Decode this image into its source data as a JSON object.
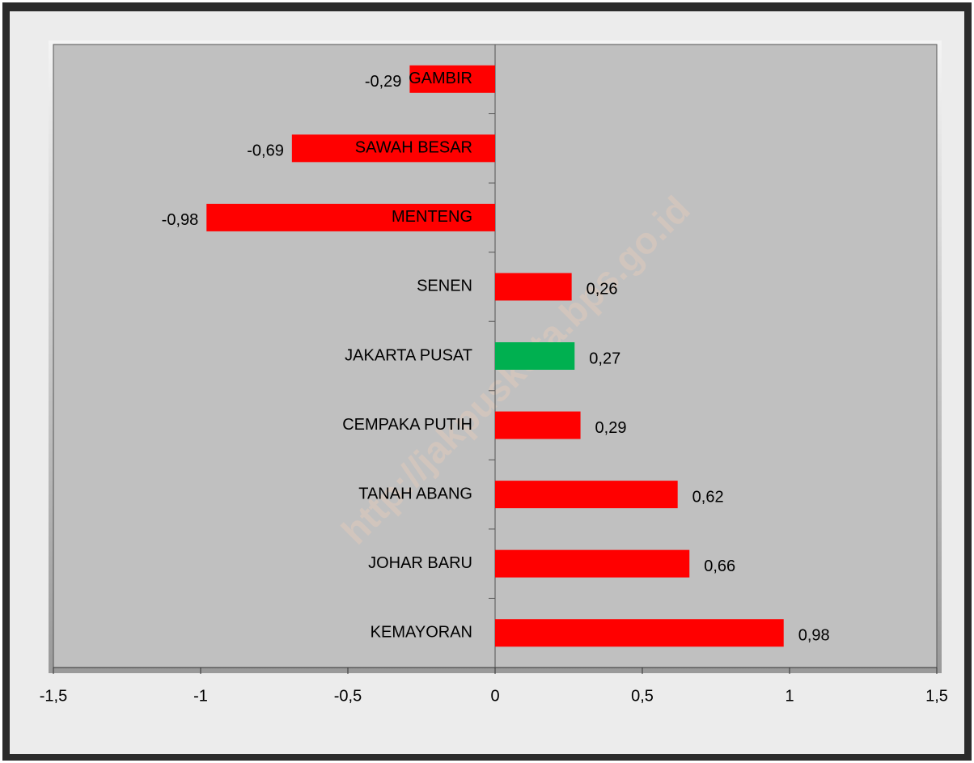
{
  "chart_data": {
    "type": "hbar",
    "watermark": "http://jakpuskota.bps.go.id",
    "categories": [
      "GAMBIR",
      "SAWAH BESAR",
      "MENTENG",
      "SENEN",
      "JAKARTA PUSAT",
      "CEMPAKA PUTIH",
      "TANAH ABANG",
      "JOHAR BARU",
      "KEMAYORAN"
    ],
    "values": [
      -0.29,
      -0.69,
      -0.98,
      0.26,
      0.27,
      0.29,
      0.62,
      0.66,
      0.98
    ],
    "value_labels": [
      "-0,29",
      "-0,69",
      "-0,98",
      "0,26",
      "0,27",
      "0,29",
      "0,62",
      "0,66",
      "0,98"
    ],
    "colors": [
      "#ff0000",
      "#ff0000",
      "#ff0000",
      "#ff0000",
      "#00b050",
      "#ff0000",
      "#ff0000",
      "#ff0000",
      "#ff0000"
    ],
    "xlim": [
      -1.5,
      1.5
    ],
    "xticks": [
      {
        "value": -1.5,
        "label": "-1,5"
      },
      -1,
      {
        "value": -0.5,
        "label": "-0,5"
      },
      0,
      {
        "value": 0.5,
        "label": "0,5"
      },
      1,
      {
        "value": 1.5,
        "label": "1,5"
      }
    ]
  }
}
